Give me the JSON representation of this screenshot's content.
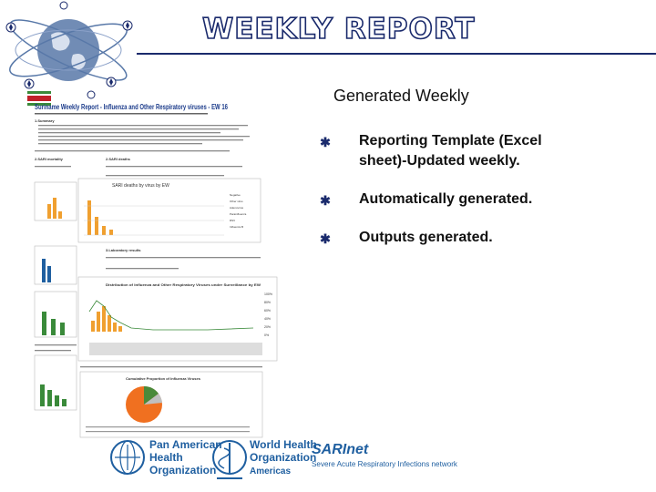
{
  "slide": {
    "title": "WEEKLY REPORT",
    "subtitle": "Generated Weekly",
    "bullets": [
      {
        "icon": "asterisk-bullet-icon",
        "text": "Reporting Template (Excel sheet)-Updated weekly."
      },
      {
        "icon": "asterisk-bullet-icon",
        "text": "Automatically generated."
      },
      {
        "icon": "asterisk-bullet-icon",
        "text": "Outputs generated."
      }
    ]
  },
  "report_thumbnail": {
    "heading": "Suriname Weekly Report - Influenza and Other Respiratory viruses - EW 16",
    "section_summary": "1.Summary",
    "section_sari_mortality": "2.SARI mortality",
    "section_deaths": "2.SARI deaths",
    "section_lab": "3.Laboratory results",
    "chart1_title": "SARI deaths by virus by EW",
    "chart1_legend": [
      "Negative",
      "Other virus",
      "Adenovirus",
      "Parainfluenza",
      "RSV",
      "Influenza B"
    ],
    "chart2_title": "Distribution of Influenza and Other Respiratory Viruses under Surveillance by EW",
    "chart2_y_pct": [
      "100%",
      "80%",
      "60%",
      "40%",
      "20%",
      "0%"
    ],
    "chart3_title": "Cumulative Proportion of Influenza Viruses"
  },
  "logos": {
    "paho_line1": "Pan American",
    "paho_line2": "Health",
    "paho_line3": "Organization",
    "who_line1": "World Health",
    "who_line2": "Organization",
    "who_line3": "Americas",
    "sari_brand": "SARInet",
    "sari_tagline": "Severe Acute Respiratory Infections network"
  },
  "colors": {
    "title_outline": "#1a2a6c",
    "accent": "#1a2a6c",
    "chart_orange": "#f0a030",
    "chart_green": "#3a8a3a",
    "pie_orange": "#f07020",
    "paho_blue": "#1f5fa0"
  }
}
